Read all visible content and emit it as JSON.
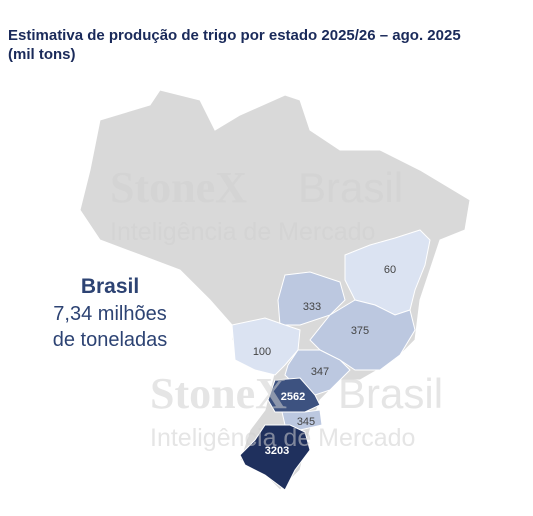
{
  "title": "Estimativa de produção de trigo por estado 2025/26 – ago. 2025",
  "subtitle": "(mil tons)",
  "summary": {
    "label": "Brasil",
    "line1": "7,34 milhões",
    "line2": "de toneladas"
  },
  "watermarks": [
    {
      "brand": "StoneX",
      "country": "Brasil",
      "tagline": "Inteligência de Mercado"
    },
    {
      "brand": "StoneX",
      "country": "Brasil",
      "tagline": "Inteligência de Mercado"
    }
  ],
  "regions": [
    {
      "value": 60,
      "color": "#dbe3f2"
    },
    {
      "value": 333,
      "color": "#bcc8e0"
    },
    {
      "value": 375,
      "color": "#bcc8e0"
    },
    {
      "value": 100,
      "color": "#dbe3f2"
    },
    {
      "value": 347,
      "color": "#bcc8e0"
    },
    {
      "value": 2562,
      "color": "#3d5280"
    },
    {
      "value": 345,
      "color": "#bcc8e0"
    },
    {
      "value": 3203,
      "color": "#1f305d"
    }
  ]
}
